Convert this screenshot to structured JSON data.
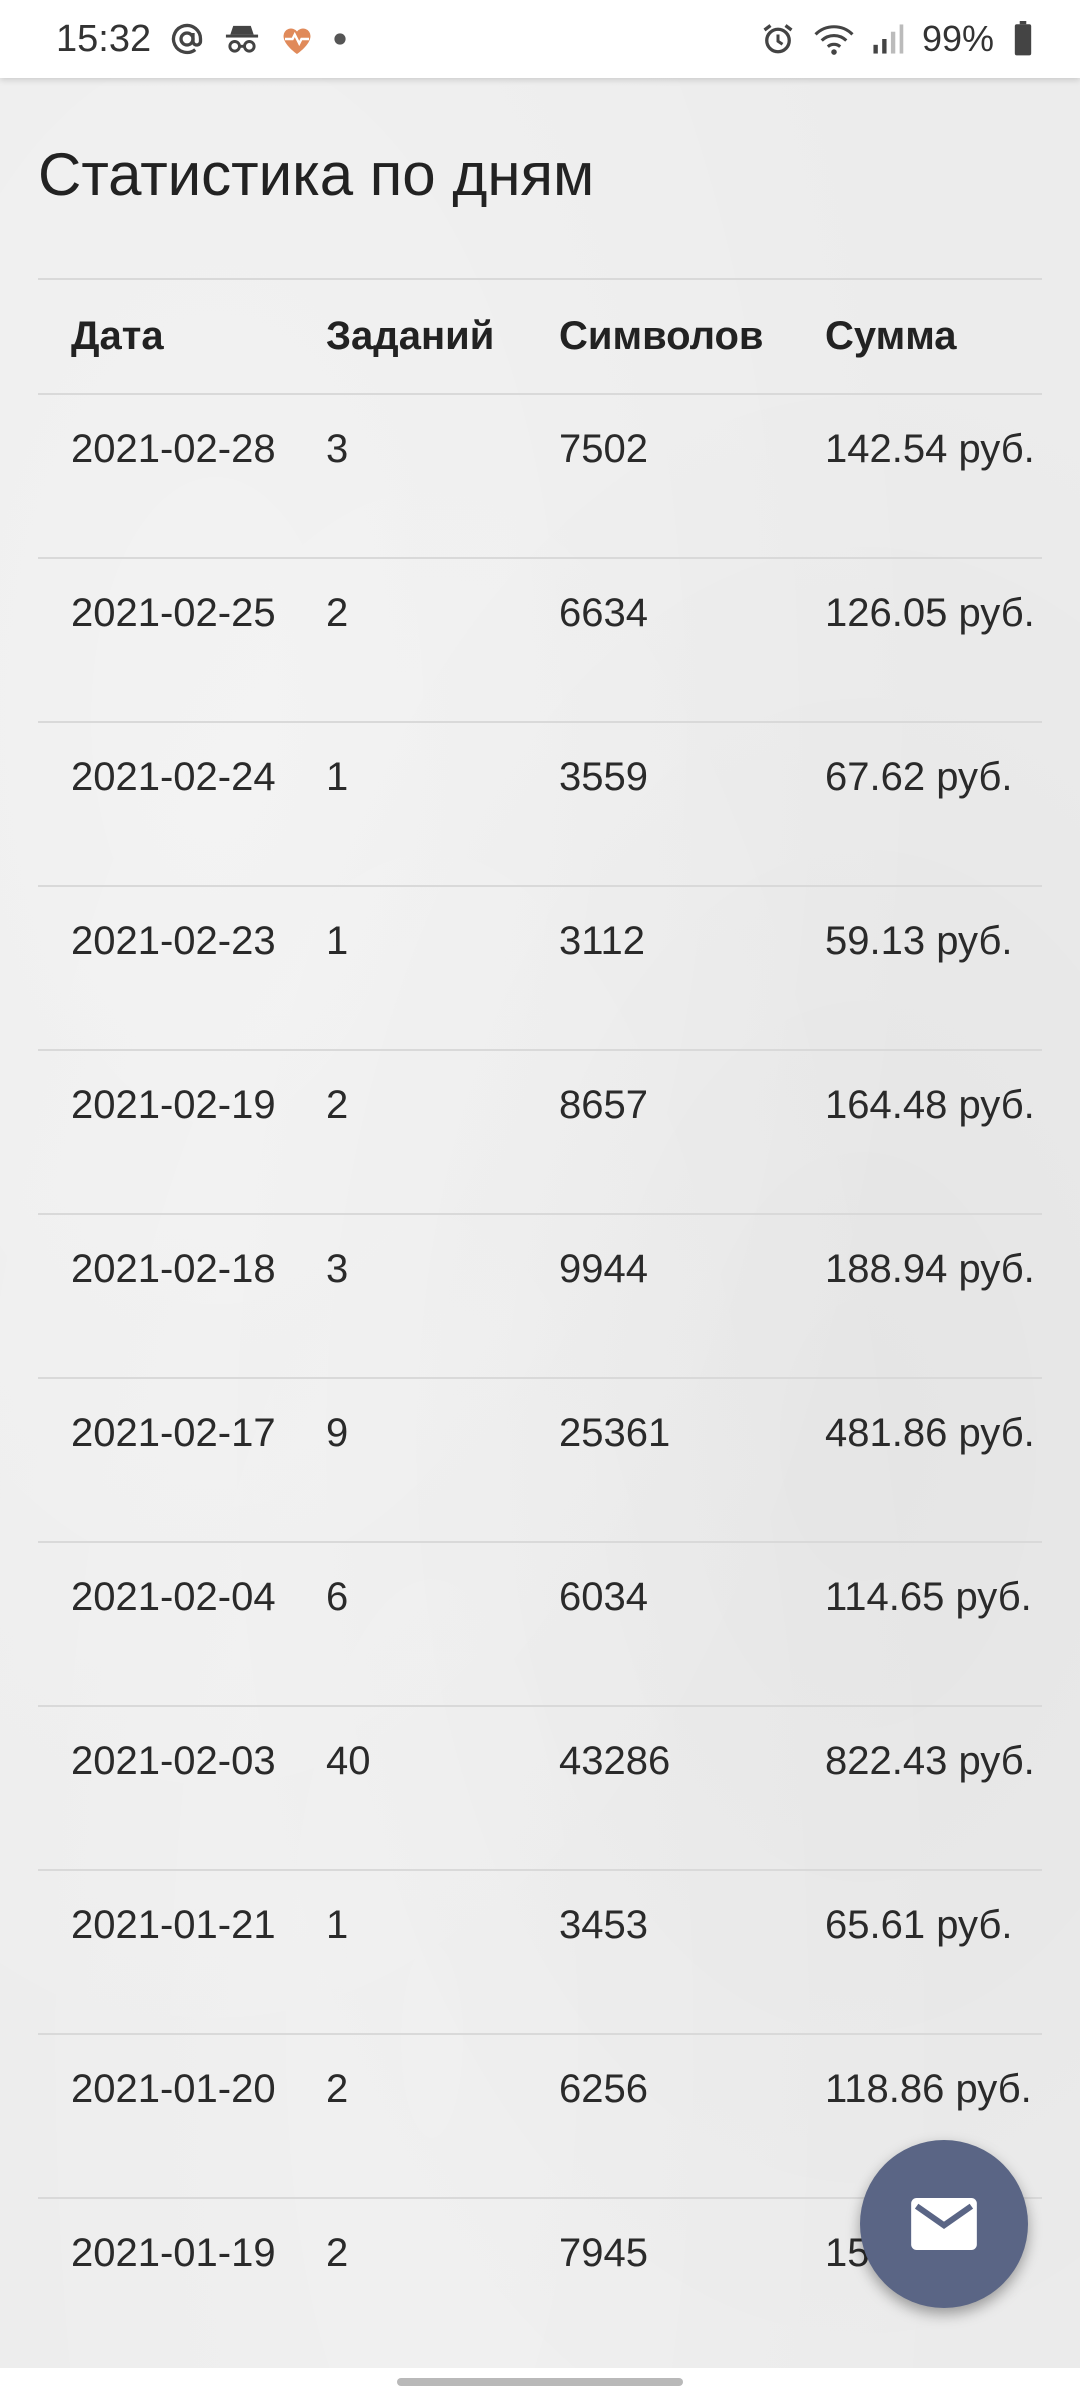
{
  "status_bar": {
    "time": "15:32",
    "battery": "99%",
    "icons": [
      "at-icon",
      "incognito-icon",
      "heart-pulse-icon",
      "dot-icon",
      "alarm-icon",
      "wifi-icon",
      "signal-icon",
      "battery-icon"
    ]
  },
  "page": {
    "title": "Статистика по дням"
  },
  "table": {
    "headers": {
      "date": "Дата",
      "tasks": "Заданий",
      "chars": "Символов",
      "sum": "Сумма"
    },
    "rows": [
      {
        "date": "2021-02-28",
        "tasks": "3",
        "chars": "7502",
        "sum": "142.54 руб."
      },
      {
        "date": "2021-02-25",
        "tasks": "2",
        "chars": "6634",
        "sum": "126.05 руб."
      },
      {
        "date": "2021-02-24",
        "tasks": "1",
        "chars": "3559",
        "sum": "67.62 руб."
      },
      {
        "date": "2021-02-23",
        "tasks": "1",
        "chars": "3112",
        "sum": "59.13 руб."
      },
      {
        "date": "2021-02-19",
        "tasks": "2",
        "chars": "8657",
        "sum": "164.48 руб."
      },
      {
        "date": "2021-02-18",
        "tasks": "3",
        "chars": "9944",
        "sum": "188.94 руб."
      },
      {
        "date": "2021-02-17",
        "tasks": "9",
        "chars": "25361",
        "sum": "481.86 руб."
      },
      {
        "date": "2021-02-04",
        "tasks": "6",
        "chars": "6034",
        "sum": "114.65 руб."
      },
      {
        "date": "2021-02-03",
        "tasks": "40",
        "chars": "43286",
        "sum": "822.43 руб."
      },
      {
        "date": "2021-01-21",
        "tasks": "1",
        "chars": "3453",
        "sum": "65.61 руб."
      },
      {
        "date": "2021-01-20",
        "tasks": "2",
        "chars": "6256",
        "sum": "118.86 руб."
      },
      {
        "date": "2021-01-19",
        "tasks": "2",
        "chars": "7945",
        "sum": "15… руб."
      }
    ]
  },
  "fab": {
    "icon": "mail-icon",
    "color": "#5a6585"
  },
  "colors": {
    "background": "#ececec",
    "divider": "#d9d9d9",
    "heart_icon": "#e08a5a"
  }
}
